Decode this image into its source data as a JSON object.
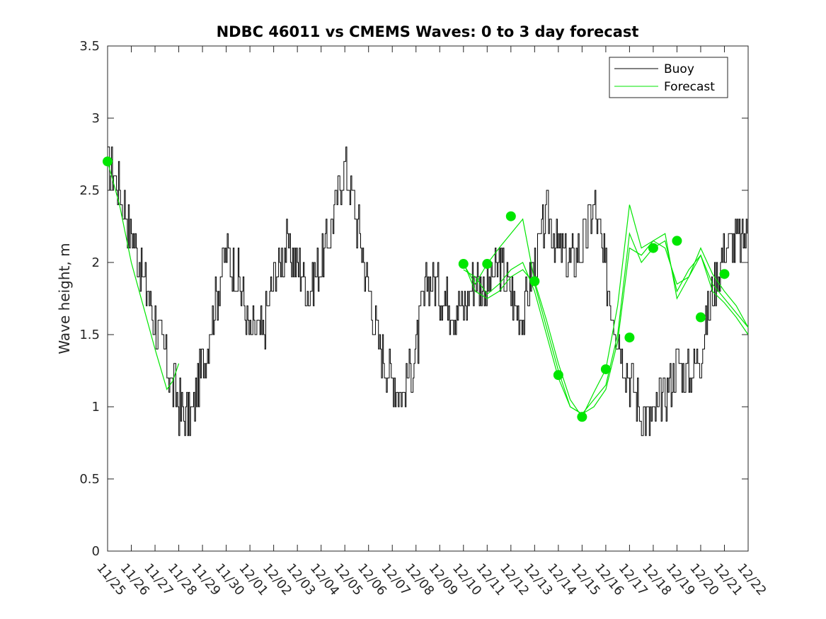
{
  "chart_data": {
    "type": "line",
    "title": "NDBC 46011 vs CMEMS Waves: 0 to 3 day forecast",
    "xlabel": "",
    "ylabel": "Wave height, m",
    "ylim": [
      0,
      3.5
    ],
    "yticks": [
      "0",
      "0.5",
      "1",
      "1.5",
      "2",
      "2.5",
      "3",
      "3.5"
    ],
    "xlim_days": [
      0,
      27
    ],
    "xticks": [
      "11/25",
      "11/26",
      "11/27",
      "11/28",
      "11/29",
      "11/30",
      "12/01",
      "12/02",
      "12/03",
      "12/04",
      "12/05",
      "12/06",
      "12/07",
      "12/08",
      "12/09",
      "12/10",
      "12/11",
      "12/12",
      "12/13",
      "12/14",
      "12/15",
      "12/16",
      "12/17",
      "12/18",
      "12/19",
      "12/20",
      "12/21",
      "12/22"
    ],
    "grid": false,
    "legend_position": "top-right",
    "colors": {
      "buoy": "#000000",
      "forecast": "#00e600"
    },
    "series": [
      {
        "name": "Buoy",
        "color": "#000000",
        "x_days": [
          0.0,
          0.5,
          1.0,
          1.5,
          2.0,
          2.5,
          3.0,
          3.5,
          4.0,
          4.5,
          5.0,
          5.5,
          6.0,
          6.5,
          7.0,
          7.5,
          8.0,
          8.5,
          9.0,
          9.5,
          10.0,
          10.5,
          11.0,
          11.5,
          12.0,
          12.5,
          13.0,
          13.5,
          14.0,
          14.5,
          15.0,
          15.5,
          16.0,
          16.5,
          17.0,
          17.5,
          18.0,
          18.5,
          19.0,
          19.5,
          20.0,
          20.5,
          21.0,
          21.5,
          22.0,
          22.5,
          23.0,
          23.5,
          24.0,
          24.5,
          25.0,
          25.5,
          26.0,
          26.5,
          27.0
        ],
        "y": [
          2.7,
          2.5,
          2.2,
          1.9,
          1.6,
          1.3,
          1.0,
          0.9,
          1.3,
          1.7,
          2.1,
          1.9,
          1.5,
          1.5,
          1.9,
          2.1,
          2.0,
          1.8,
          2.0,
          2.3,
          2.7,
          2.3,
          1.8,
          1.4,
          1.2,
          1.1,
          1.4,
          1.9,
          1.8,
          1.7,
          1.7,
          1.9,
          1.8,
          2.0,
          1.8,
          1.6,
          2.0,
          2.3,
          2.1,
          2.0,
          2.1,
          2.4,
          1.9,
          1.5,
          1.2,
          0.95,
          0.9,
          1.1,
          1.3,
          1.2,
          1.4,
          1.8,
          2.1,
          2.15,
          2.2
        ]
      },
      {
        "name": "Forecast",
        "color": "#00e600",
        "segments": [
          {
            "x_days": [
              0.0,
              0.5,
              1.0,
              1.5,
              2.0,
              2.5,
              2.75,
              3.0
            ],
            "y": [
              2.7,
              2.4,
              2.0,
              1.7,
              1.4,
              1.12,
              1.18,
              1.3
            ]
          },
          {
            "x_days": [
              15.0,
              15.5,
              16.0,
              16.5,
              17.0,
              17.5,
              18.0,
              18.5,
              19.0,
              19.5,
              20.0,
              20.5,
              21.0,
              21.5,
              22.0,
              22.5,
              23.0,
              23.5,
              24.0,
              24.5,
              25.0,
              25.5,
              26.0,
              26.5,
              27.0
            ],
            "y": [
              1.99,
              1.85,
              1.99,
              2.1,
              2.2,
              2.3,
              1.87,
              1.6,
              1.3,
              1.05,
              0.93,
              1.1,
              1.26,
              1.7,
              2.4,
              2.1,
              2.15,
              2.2,
              1.75,
              1.9,
              2.1,
              1.92,
              1.8,
              1.7,
              1.55
            ]
          },
          {
            "x_days": [
              15.0,
              15.5,
              16.0,
              16.5,
              17.0,
              17.5,
              18.0,
              18.5,
              19.0,
              19.5,
              20.0,
              20.5,
              21.0,
              21.5,
              22.0,
              22.5,
              23.0,
              23.5,
              24.0,
              24.5,
              25.0,
              25.5,
              26.0,
              26.5,
              27.0
            ],
            "y": [
              2.0,
              1.8,
              1.75,
              1.8,
              1.9,
              1.95,
              1.85,
              1.55,
              1.25,
              1.0,
              0.95,
              1.05,
              1.15,
              1.5,
              2.2,
              2.0,
              2.1,
              2.15,
              1.8,
              1.95,
              2.05,
              1.85,
              1.75,
              1.65,
              1.55
            ]
          },
          {
            "x_days": [
              15.0,
              15.5,
              16.0,
              16.5,
              17.0,
              17.5,
              18.0,
              18.5,
              19.0,
              19.5,
              20.0,
              20.5,
              21.0,
              21.5,
              22.0,
              22.5,
              23.0,
              23.5,
              24.0,
              24.5,
              25.0,
              25.5,
              26.0,
              26.5,
              27.0
            ],
            "y": [
              1.95,
              1.9,
              1.78,
              1.85,
              1.95,
              2.0,
              1.8,
              1.5,
              1.2,
              1.0,
              0.95,
              1.0,
              1.12,
              1.45,
              2.1,
              2.05,
              2.15,
              2.1,
              1.85,
              1.9,
              2.05,
              1.8,
              1.72,
              1.62,
              1.5
            ]
          }
        ],
        "markers_x_days": [
          0,
          15,
          16,
          17,
          18,
          19,
          20,
          21,
          22,
          23,
          24,
          25,
          26
        ],
        "markers_y": [
          2.7,
          1.99,
          1.99,
          2.32,
          1.87,
          1.22,
          0.93,
          1.26,
          1.48,
          2.1,
          2.15,
          1.62,
          1.92
        ]
      }
    ]
  }
}
